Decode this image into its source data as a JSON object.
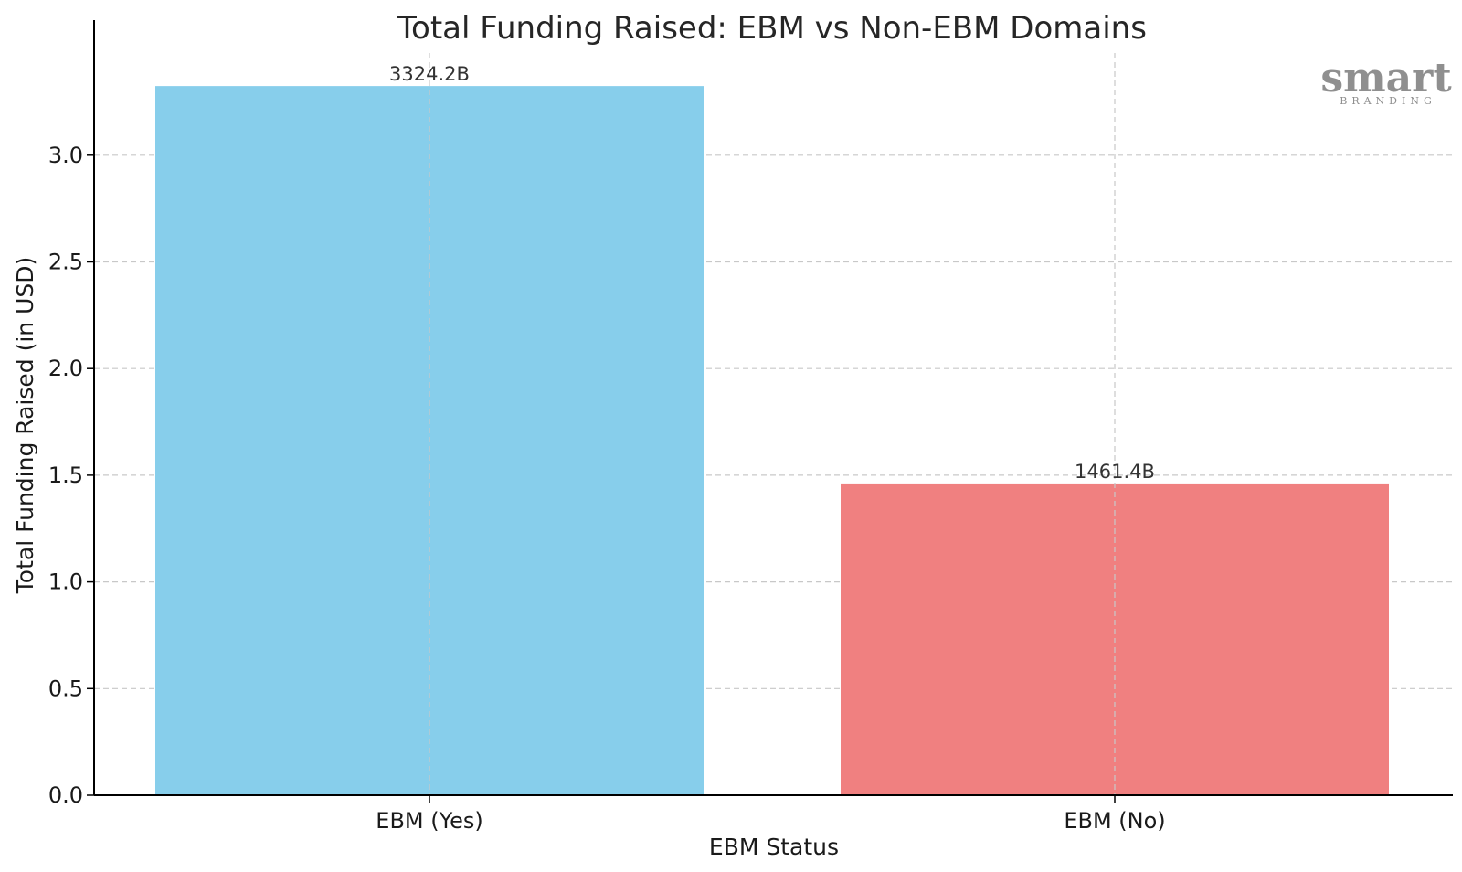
{
  "chart_data": {
    "type": "bar",
    "title": "Total Funding Raised: EBM vs Non-EBM Domains",
    "xlabel": "EBM Status",
    "ylabel": "Total Funding Raised (in USD)",
    "categories": [
      "EBM (Yes)",
      "EBM (No)"
    ],
    "values": [
      3.3242,
      1.4614
    ],
    "data_labels": [
      "3324.2B",
      "1461.4B"
    ],
    "colors": [
      "#87CEEB",
      "#F08080"
    ],
    "ylim": [
      0,
      3.5
    ],
    "yticks": [
      0.0,
      0.5,
      1.0,
      1.5,
      2.0,
      2.5,
      3.0
    ],
    "ytick_labels": [
      "0.0",
      "0.5",
      "1.0",
      "1.5",
      "2.0",
      "2.5",
      "3.0"
    ],
    "grid": true
  },
  "watermark": {
    "main": "smart",
    "sub": "BRANDING"
  }
}
